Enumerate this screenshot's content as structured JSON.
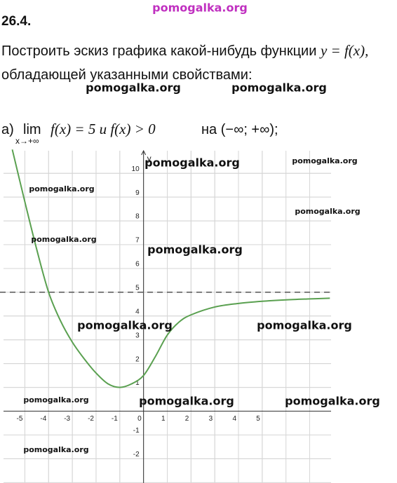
{
  "header": {
    "number": "26.4."
  },
  "task": {
    "line1": "Построить эскиз графика какой-нибудь функции",
    "line1_math": "y = f(x),",
    "line2": "обладающей указанными свойствами:"
  },
  "item": {
    "label": "а)",
    "lim": "lim",
    "lim_sub": "x→+∞",
    "condition": "f(x) = 5  и  f(x) > 0",
    "tail": "на (−∞; +∞);"
  },
  "watermarks": [
    "pomogalka.org",
    "pomogalka.org",
    "pomogalka.org",
    "pomogalka.org",
    "pomogalka.org",
    "pomogalka.org",
    "pomogalka.org",
    "pomogalka.org",
    "pomogalka.org",
    "pomogalka.org",
    "pomogalka.org",
    "pomogalka.org",
    "pomogalka.org",
    "pomogalka.org",
    "pomogalka.org"
  ],
  "chart_data": {
    "type": "line",
    "y_label": "y",
    "x": [
      -5.53,
      -5,
      -4.5,
      -4,
      -3.5,
      -3,
      -2.5,
      -2,
      -1.5,
      -1,
      -0.5,
      0,
      0.5,
      1,
      1.5,
      2,
      3,
      4,
      5,
      6,
      7,
      7.85
    ],
    "series": [
      {
        "color": "#5aa050",
        "values": [
          11,
          8.8,
          6.8,
          5,
          3.8,
          2.9,
          2.2,
          1.6,
          1.15,
          1,
          1.15,
          1.5,
          2.3,
          3.2,
          3.75,
          4.05,
          4.38,
          4.53,
          4.62,
          4.68,
          4.72,
          4.75
        ]
      }
    ],
    "asymptote": 5,
    "xlim": [
      -5.9,
      7.9
    ],
    "ylim": [
      -3.02,
      10.95
    ],
    "xticks": [
      -5,
      -4,
      -3,
      -2,
      -1,
      0,
      1,
      2,
      3,
      4,
      5
    ],
    "yticks": [
      -2,
      -1,
      1,
      2,
      3,
      4,
      5,
      6,
      7,
      8,
      9,
      10
    ],
    "grid": true
  }
}
